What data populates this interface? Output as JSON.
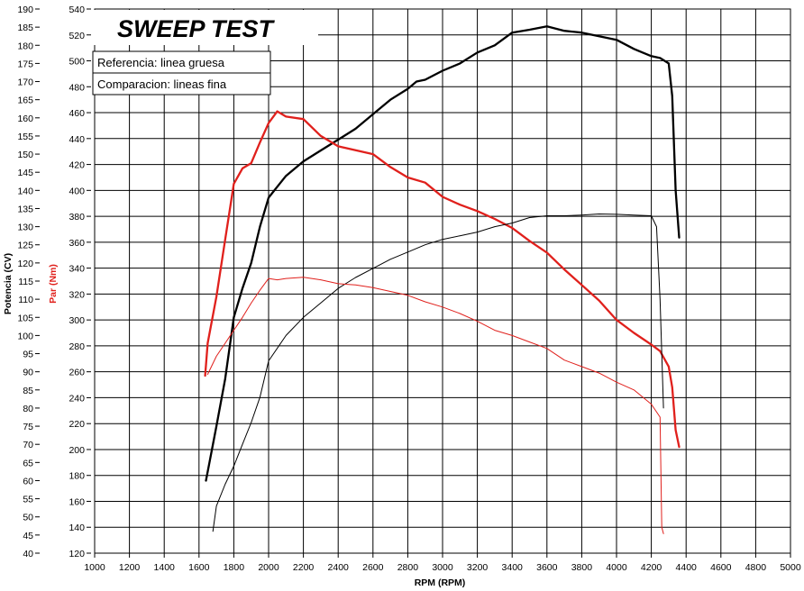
{
  "chart_data": {
    "type": "line",
    "title": "SWEEP TEST",
    "xlabel": "RPM (RPM)",
    "ylabel_left": "Potencia (CV)",
    "ylabel_right": "Par (Nm)",
    "xlim": [
      1000,
      5000
    ],
    "ylim_power": [
      40,
      190
    ],
    "ylim_torque": [
      120,
      540
    ],
    "grid": true,
    "x_ticks": [
      "1000",
      "1200",
      "1400",
      "1600",
      "1800",
      "2000",
      "2200",
      "2400",
      "2600",
      "2800",
      "3000",
      "3200",
      "3400",
      "3600",
      "3800",
      "4000",
      "4200",
      "4400",
      "4600",
      "4800",
      "5000"
    ],
    "power_ticks": [
      "190",
      "185",
      "180",
      "175",
      "170",
      "165",
      "160",
      "155",
      "150",
      "145",
      "140",
      "135",
      "130",
      "125",
      "120",
      "115",
      "110",
      "105",
      "100",
      "95",
      "90",
      "85",
      "80",
      "75",
      "70",
      "65",
      "60",
      "55",
      "50",
      "45",
      "40"
    ],
    "torque_ticks": [
      "540",
      "520",
      "500",
      "480",
      "460",
      "440",
      "420",
      "400",
      "380",
      "360",
      "340",
      "320",
      "300",
      "280",
      "260",
      "240",
      "220",
      "200",
      "180",
      "160",
      "140",
      "120"
    ],
    "legend": [
      "Referencia: linea gruesa",
      "Comparacion: lineas fina"
    ],
    "colors": {
      "power": "#000000",
      "torque": "#e0201c"
    },
    "series": [
      {
        "name": "Referencia: linea gruesa",
        "quantity": "power",
        "axis": "left",
        "width": "thick",
        "x": [
          1640,
          1660,
          1700,
          1750,
          1800,
          1850,
          1900,
          1950,
          2000,
          2050,
          2100,
          2200,
          2300,
          2400,
          2500,
          2600,
          2700,
          2800,
          2850,
          2900,
          3000,
          3100,
          3200,
          3300,
          3400,
          3500,
          3600,
          3700,
          3800,
          3900,
          4000,
          4100,
          4150,
          4200,
          4250,
          4300,
          4320,
          4340,
          4360
        ],
        "y": [
          60,
          65,
          75,
          88,
          105,
          113,
          120,
          130,
          138,
          141,
          144,
          148,
          151,
          154,
          157,
          161,
          165,
          168,
          170,
          170.5,
          173,
          175,
          178,
          180,
          183.5,
          184.3,
          185.2,
          184,
          183.5,
          182.5,
          181.5,
          179,
          178,
          177,
          176.5,
          175,
          166,
          140,
          127
        ]
      },
      {
        "name": "Referencia: linea gruesa",
        "quantity": "torque",
        "axis": "right",
        "width": "thick",
        "x": [
          1635,
          1650,
          1700,
          1750,
          1800,
          1850,
          1900,
          1950,
          2000,
          2050,
          2100,
          2200,
          2300,
          2400,
          2500,
          2600,
          2700,
          2800,
          2900,
          3000,
          3100,
          3200,
          3300,
          3400,
          3500,
          3600,
          3700,
          3800,
          3900,
          4000,
          4100,
          4200,
          4250,
          4300,
          4320,
          4340,
          4360
        ],
        "y": [
          257,
          282,
          318,
          362,
          405,
          417,
          421,
          437,
          452,
          461,
          457,
          455,
          442,
          434,
          431,
          428,
          418,
          410,
          406,
          395,
          389,
          384,
          378,
          371,
          361,
          352,
          339,
          327,
          315,
          300,
          290,
          281,
          276,
          264,
          248,
          215,
          202
        ]
      },
      {
        "name": "Comparacion: lineas fina",
        "quantity": "power",
        "axis": "left",
        "width": "thin",
        "x": [
          1680,
          1700,
          1750,
          1800,
          1850,
          1900,
          1950,
          2000,
          2100,
          2200,
          2300,
          2400,
          2500,
          2600,
          2700,
          2800,
          2900,
          3000,
          3100,
          3200,
          3300,
          3400,
          3500,
          3600,
          3700,
          3800,
          3900,
          4000,
          4100,
          4200,
          4230,
          4250,
          4270
        ],
        "y": [
          46,
          53,
          59,
          64,
          70,
          76,
          83,
          93,
          100,
          105,
          109,
          113,
          116,
          118.5,
          121,
          123,
          125,
          126.5,
          127.5,
          128.5,
          130,
          131,
          132.5,
          133,
          133,
          133.2,
          133.5,
          133.4,
          133.2,
          133,
          130,
          110,
          80
        ]
      },
      {
        "name": "Comparacion: lineas fina",
        "quantity": "torque",
        "axis": "right",
        "width": "thin",
        "x": [
          1650,
          1700,
          1750,
          1800,
          1850,
          1900,
          1950,
          2000,
          2050,
          2100,
          2200,
          2300,
          2400,
          2500,
          2600,
          2700,
          2800,
          2900,
          3000,
          3100,
          3200,
          3300,
          3400,
          3500,
          3600,
          3700,
          3800,
          3900,
          4000,
          4100,
          4200,
          4250,
          4260,
          4270
        ],
        "y": [
          258,
          272,
          282,
          292,
          302,
          313,
          323,
          332,
          331,
          332,
          333,
          331,
          328,
          327,
          325,
          322,
          319,
          314,
          310,
          305,
          299,
          292,
          288,
          283,
          278,
          269,
          264,
          259,
          252,
          246,
          235,
          225,
          140,
          135
        ]
      }
    ]
  }
}
